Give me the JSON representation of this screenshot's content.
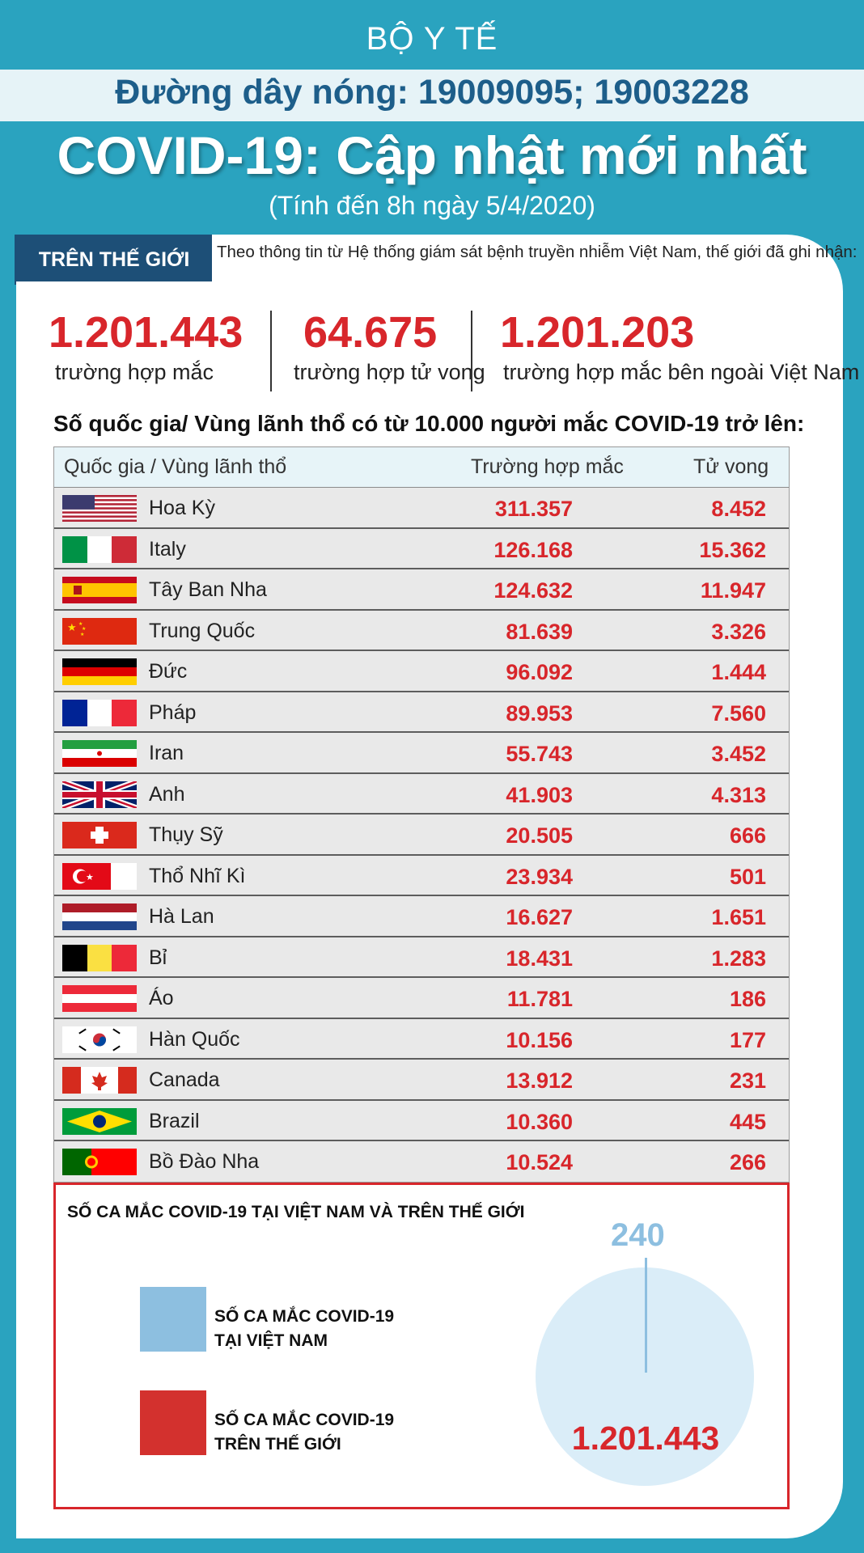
{
  "header": {
    "ministry": "BỘ Y TẾ",
    "hotline": "Đường dây nóng: 19009095; 19003228",
    "title": "COVID-19: Cập nhật mới nhất",
    "subtitle": "(Tính đến 8h ngày 5/4/2020)"
  },
  "world": {
    "tag": "TRÊN THẾ GIỚI",
    "intro": "Theo thông tin từ Hệ thống giám sát bệnh truyền nhiễm Việt Nam, thế giới đã ghi nhận:",
    "stats": [
      {
        "number": "1.201.443",
        "label": "trường hợp mắc"
      },
      {
        "number": "64.675",
        "label": "trường hợp tử vong"
      },
      {
        "number": "1.201.203",
        "label": "trường hợp  mắc bên ngoài Việt Nam"
      }
    ]
  },
  "table": {
    "heading": "Số quốc gia/ Vùng lãnh thổ có từ 10.000 người  mắc COVID-19 trở lên:",
    "columns": {
      "country": "Quốc gia / Vùng lãnh thổ",
      "cases": "Trường hợp mắc",
      "deaths": "Tử vong"
    },
    "rows": [
      {
        "flag": "usa-flag-icon",
        "name": "Hoa Kỳ",
        "cases": "311.357",
        "deaths": "8.452"
      },
      {
        "flag": "italy-flag-icon",
        "name": "Italy",
        "cases": "126.168",
        "deaths": "15.362"
      },
      {
        "flag": "spain-flag-icon",
        "name": "Tây Ban Nha",
        "cases": "124.632",
        "deaths": "11.947"
      },
      {
        "flag": "china-flag-icon",
        "name": "Trung Quốc",
        "cases": "81.639",
        "deaths": "3.326"
      },
      {
        "flag": "germany-flag-icon",
        "name": "Đức",
        "cases": "96.092",
        "deaths": "1.444"
      },
      {
        "flag": "france-flag-icon",
        "name": "Pháp",
        "cases": "89.953",
        "deaths": "7.560"
      },
      {
        "flag": "iran-flag-icon",
        "name": "Iran",
        "cases": "55.743",
        "deaths": "3.452"
      },
      {
        "flag": "uk-flag-icon",
        "name": "Anh",
        "cases": "41.903",
        "deaths": "4.313"
      },
      {
        "flag": "switzerland-flag-icon",
        "name": "Thụy Sỹ",
        "cases": "20.505",
        "deaths": "666"
      },
      {
        "flag": "turkey-flag-icon",
        "name": "Thổ Nhĩ Kì",
        "cases": "23.934",
        "deaths": "501"
      },
      {
        "flag": "netherlands-flag-icon",
        "name": "Hà Lan",
        "cases": "16.627",
        "deaths": "1.651"
      },
      {
        "flag": "belgium-flag-icon",
        "name": "Bỉ",
        "cases": "18.431",
        "deaths": "1.283"
      },
      {
        "flag": "austria-flag-icon",
        "name": "Áo",
        "cases": "11.781",
        "deaths": "186"
      },
      {
        "flag": "south-korea-flag-icon",
        "name": "Hàn Quốc",
        "cases": "10.156",
        "deaths": "177"
      },
      {
        "flag": "canada-flag-icon",
        "name": "Canada",
        "cases": "13.912",
        "deaths": "231"
      },
      {
        "flag": "brazil-flag-icon",
        "name": "Brazil",
        "cases": "10.360",
        "deaths": "445"
      },
      {
        "flag": "portugal-flag-icon",
        "name": "Bồ Đào Nha",
        "cases": "10.524",
        "deaths": "266"
      }
    ]
  },
  "compare": {
    "title": "SỐ CA MẮC COVID-19 TẠI VIỆT NAM VÀ TRÊN THẾ GIỚI",
    "legend": [
      {
        "line1": "SỐ CA MẮC COVID-19",
        "line2": "TẠI VIỆT NAM",
        "color": "#8dbfe0"
      },
      {
        "line1": "SỐ CA MẮC COVID-19",
        "line2": "TRÊN THẾ GIỚI",
        "color": "#d3312e"
      }
    ],
    "vietnam_count": "240",
    "world_count": "1.201.443"
  },
  "colors": {
    "background": "#2aa3bf",
    "accent_red": "#d8262b",
    "navy": "#1d4f77",
    "light_blue": "#8dbfe0"
  }
}
